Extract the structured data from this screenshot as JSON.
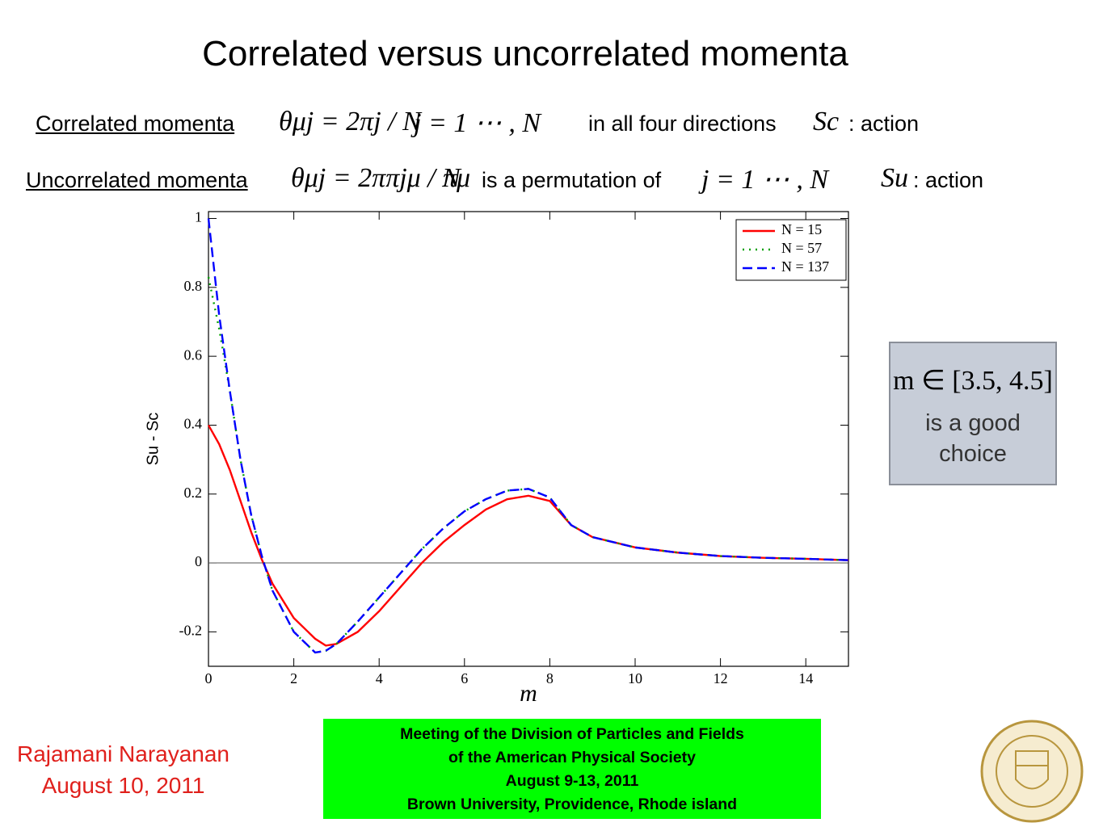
{
  "slide_title": "Correlated versus uncorrelated momenta",
  "correlated": {
    "label": "Correlated momenta",
    "formula": "θμj = 2πj / N",
    "range": "j = 1 ⋯ , N",
    "text": "in all four directions",
    "symbol": "Sc",
    "suffix": ": action"
  },
  "uncorrelated": {
    "label": "Uncorrelated momenta",
    "formula": "θμj = 2ππjμ / N",
    "perm": "πμ",
    "text": "is a permutation of",
    "range": "j = 1 ⋯ , N",
    "symbol": "Su",
    "suffix": ": action"
  },
  "note": {
    "formula": "m ∈ [3.5, 4.5]",
    "text": "is a good choice"
  },
  "presenter": {
    "name": "Rajamani Narayanan",
    "date": "August 10, 2011"
  },
  "footer": [
    "Meeting of the Division of Particles and Fields",
    "of the American Physical Society",
    "August 9-13, 2011",
    "Brown University, Providence, Rhode island"
  ],
  "chart_data": {
    "type": "line",
    "x_label": "m",
    "y_label": "Su - Sc",
    "x": [
      0,
      0.25,
      0.5,
      0.75,
      1,
      1.25,
      1.5,
      2,
      2.5,
      2.75,
      3,
      3.5,
      4,
      4.5,
      5,
      5.5,
      6,
      6.5,
      7,
      7.5,
      8,
      8.5,
      9,
      10,
      11,
      12,
      13,
      14,
      15
    ],
    "series": [
      {
        "name": "N = 15",
        "color": "#ff0000",
        "linestyle": "solid",
        "values": [
          0.4,
          0.345,
          0.27,
          0.18,
          0.09,
          0.01,
          -0.06,
          -0.16,
          -0.22,
          -0.24,
          -0.235,
          -0.2,
          -0.14,
          -0.07,
          0.0,
          0.06,
          0.11,
          0.155,
          0.185,
          0.195,
          0.18,
          0.11,
          0.075,
          0.045,
          0.03,
          0.02,
          0.015,
          0.012,
          0.008
        ]
      },
      {
        "name": "N = 57",
        "color": "#00a000",
        "linestyle": "dotted",
        "values": [
          0.83,
          0.68,
          0.5,
          0.3,
          0.14,
          0.02,
          -0.08,
          -0.2,
          -0.26,
          -0.255,
          -0.235,
          -0.17,
          -0.1,
          -0.03,
          0.04,
          0.1,
          0.15,
          0.185,
          0.21,
          0.215,
          0.19,
          0.11,
          0.075,
          0.045,
          0.03,
          0.02,
          0.015,
          0.012,
          0.008
        ]
      },
      {
        "name": "N = 137",
        "color": "#0000ff",
        "linestyle": "dashed",
        "values": [
          1.0,
          0.72,
          0.5,
          0.3,
          0.14,
          0.02,
          -0.08,
          -0.2,
          -0.26,
          -0.255,
          -0.235,
          -0.17,
          -0.1,
          -0.03,
          0.04,
          0.1,
          0.15,
          0.185,
          0.21,
          0.215,
          0.19,
          0.11,
          0.075,
          0.045,
          0.03,
          0.02,
          0.015,
          0.012,
          0.008
        ]
      }
    ],
    "xlim": [
      0,
      15
    ],
    "xticks": [
      0,
      2,
      4,
      6,
      8,
      10,
      12,
      14
    ],
    "ylim": [
      -0.3,
      1.02
    ],
    "yticks": [
      -0.2,
      0,
      0.2,
      0.4,
      0.6,
      0.8,
      1
    ],
    "legend": "upper right"
  }
}
